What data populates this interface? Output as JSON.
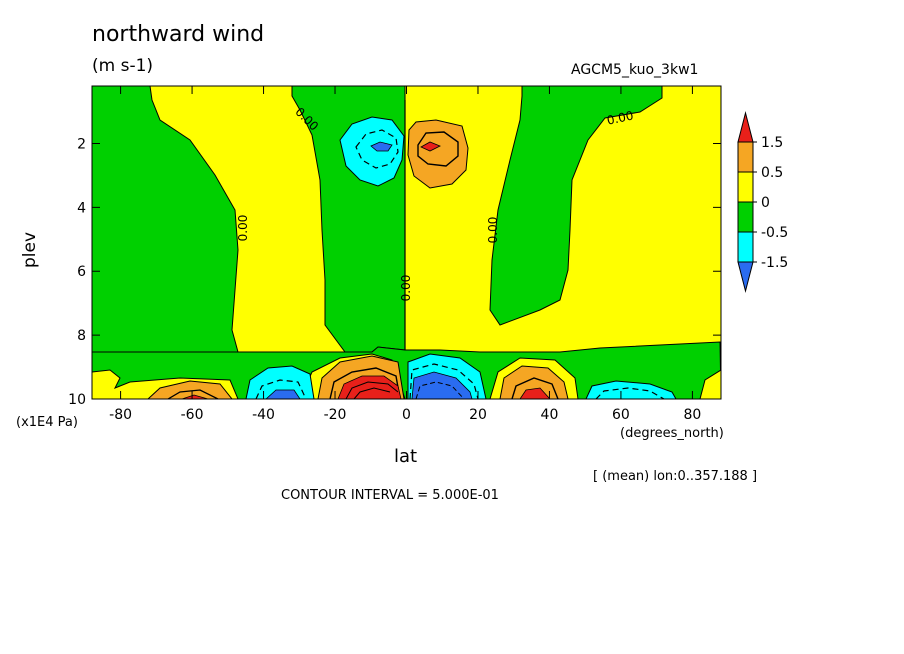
{
  "chart_data": {
    "type": "contour",
    "title": "northward wind",
    "units": "(m s-1)",
    "run_label": "AGCM5_kuo_3kw1",
    "xlabel": "lat",
    "x_unit": "(degrees_north)",
    "ylabel": "plev",
    "y_unit": "(x1E4 Pa)",
    "mean_note": "[ (mean) lon:0..357.188 ]",
    "contour_interval_text": "CONTOUR INTERVAL = 5.000E-01",
    "xlim": [
      -88,
      88
    ],
    "ylim": [
      10,
      0.2
    ],
    "x_ticks": [
      -80,
      -60,
      -40,
      -20,
      0,
      20,
      40,
      60,
      80
    ],
    "y_ticks": [
      2,
      4,
      6,
      8,
      10
    ],
    "contour_label": "0.00",
    "colorbar": {
      "levels": [
        "1.5",
        "0.5",
        "0",
        "-0.5",
        "-1.5"
      ],
      "colors": [
        "#e8201a",
        "#f5a623",
        "#ffff00",
        "#00d000",
        "#00ffff",
        "#2a6cf0"
      ]
    },
    "features": [
      {
        "x": -7,
        "y": 2,
        "sign": "negative",
        "max_level": -1.5
      },
      {
        "x": 7,
        "y": 2,
        "sign": "positive",
        "max_level": 1.5
      },
      {
        "x": -60,
        "y": 9.8,
        "sign": "positive",
        "max_level": 1.5
      },
      {
        "x": -37,
        "y": 9.8,
        "sign": "negative",
        "max_level": -1.5
      },
      {
        "x": -10,
        "y": 9.7,
        "sign": "positive",
        "max_level": 1.5
      },
      {
        "x": 10,
        "y": 9.7,
        "sign": "negative",
        "max_level": -1.5
      },
      {
        "x": 35,
        "y": 9.8,
        "sign": "positive",
        "max_level": 1.5
      },
      {
        "x": 60,
        "y": 9.9,
        "sign": "negative",
        "max_level": -0.5
      }
    ]
  }
}
